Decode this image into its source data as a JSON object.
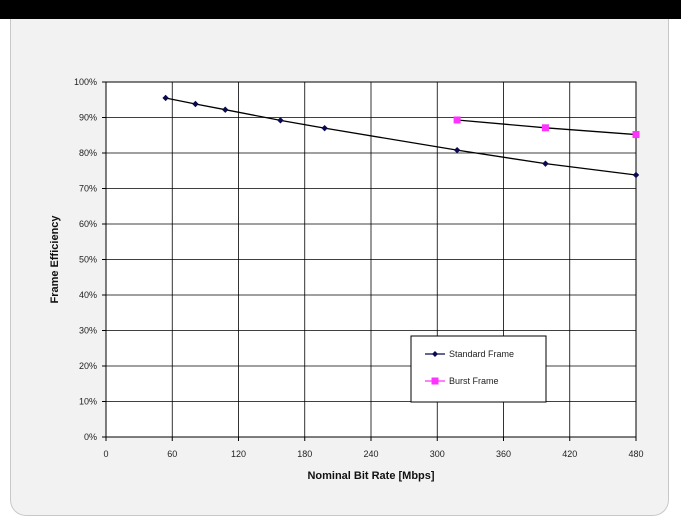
{
  "chart_data": {
    "type": "line",
    "title": "",
    "xlabel": "Nominal Bit Rate [Mbps]",
    "ylabel": "Frame  Efficiency",
    "xlim": [
      0,
      480
    ],
    "ylim": [
      0,
      100
    ],
    "x_ticks": [
      0,
      60,
      120,
      180,
      240,
      300,
      360,
      420,
      480
    ],
    "y_ticks": [
      0,
      10,
      20,
      30,
      40,
      50,
      60,
      70,
      80,
      90,
      100
    ],
    "y_tick_labels": [
      "0%",
      "10%",
      "20%",
      "30%",
      "40%",
      "50%",
      "60%",
      "70%",
      "80%",
      "90%",
      "100%"
    ],
    "grid": true,
    "legend_position": "bottom-right",
    "series": [
      {
        "name": "Standard Frame",
        "color": "#0a0a50",
        "marker": "diamond",
        "x": [
          54,
          81,
          108,
          158,
          198,
          318,
          398,
          480
        ],
        "y": [
          95.5,
          93.8,
          92.2,
          89.2,
          87.0,
          80.8,
          77.0,
          73.8
        ]
      },
      {
        "name": "Burst Frame",
        "color": "#ff33ff",
        "marker": "square",
        "x": [
          318,
          398,
          480
        ],
        "y": [
          89.3,
          87.1,
          85.2
        ]
      }
    ]
  }
}
